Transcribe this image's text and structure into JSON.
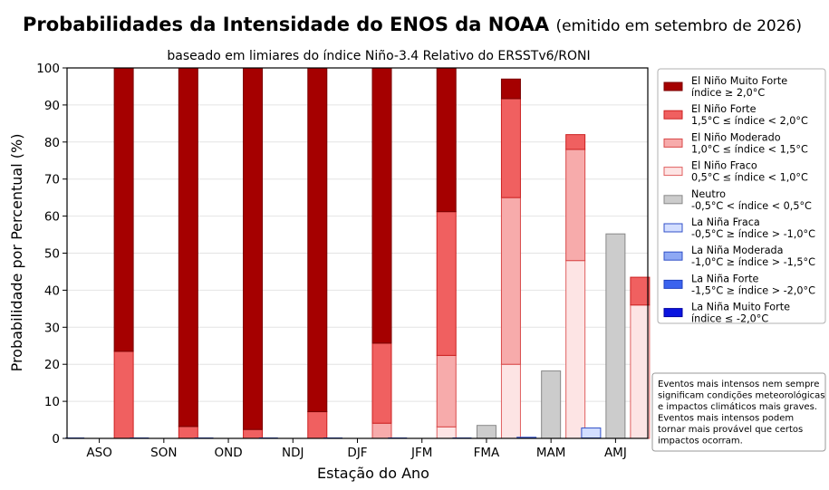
{
  "chart_data": {
    "type": "bar",
    "title": "Probabilidades da Intensidade do ENOS da NOAA",
    "title_suffix": "(emitido em setembro de 2026)",
    "subtitle": "baseado em limiares do índice Niño-3.4 Relativo do ERSSTv6/RONI",
    "xlabel": "Estação do Ano",
    "ylabel": "Probabilidade por Percentual (%)",
    "ylim": [
      0,
      100
    ],
    "yticks": [
      0,
      10,
      20,
      30,
      40,
      50,
      60,
      70,
      80,
      90,
      100
    ],
    "grid": true,
    "legend_position": "right",
    "categories": [
      "ASO",
      "SON",
      "OND",
      "NDJ",
      "DJF",
      "JFM",
      "FMA",
      "MAM",
      "AMJ"
    ],
    "groups": [
      {
        "name": "La Niña",
        "stack_order": [
          "La Niña Muito Forte",
          "La Niña Forte",
          "La Niña Moderada",
          "La Niña Fraca"
        ]
      },
      {
        "name": "Neutro",
        "stack_order": [
          "Neutro"
        ]
      },
      {
        "name": "El Niño",
        "stack_order": [
          "El Niño Fraco",
          "El Niño Moderado",
          "El Niño Forte",
          "El Niño Muito Forte"
        ]
      }
    ],
    "series": [
      {
        "name": "El Niño Muito Forte",
        "label": [
          "El Niño Muito Forte",
          "índice ≥ 2,0°C"
        ],
        "color": "#a50000",
        "border": "#7a0000",
        "values": [
          76.5,
          96.8,
          97.6,
          92.8,
          74.3,
          38.8,
          5.3,
          0,
          0
        ]
      },
      {
        "name": "El Niño Forte",
        "label": [
          "El Niño Forte",
          "1,5°C ≤ índice < 2,0°C"
        ],
        "color": "#f06060",
        "border": "#cc2222",
        "values": [
          23.5,
          3.2,
          2.4,
          7.2,
          21.6,
          38.8,
          26.7,
          4.0,
          7.5
        ]
      },
      {
        "name": "El Niño Moderado",
        "label": [
          "El Niño Moderado",
          "1,0°C ≤ índice < 1,5°C"
        ],
        "color": "#f7abab",
        "border": "#d84848",
        "values": [
          0,
          0,
          0,
          0,
          4.1,
          19.3,
          45.0,
          30.0,
          0
        ]
      },
      {
        "name": "El Niño Fraco",
        "label": [
          "El Niño Fraco",
          "0,5°C ≤ índice < 1,0°C"
        ],
        "color": "#fde4e4",
        "border": "#e06060",
        "values": [
          0,
          0,
          0,
          0,
          0,
          3.1,
          20.0,
          48.0,
          36.0
        ]
      },
      {
        "name": "Neutro",
        "label": [
          "Neutro",
          "-0,5°C < índice < 0,5°C"
        ],
        "color": "#cccccc",
        "border": "#888888",
        "values": [
          0,
          0,
          0,
          0,
          0,
          0,
          3.5,
          18.2,
          55.2
        ]
      },
      {
        "name": "La Niña Fraca",
        "label": [
          "La Niña Fraca",
          "-0,5°C ≥ índice > -1,0°C"
        ],
        "color": "#d3deff",
        "border": "#3050c8",
        "values": [
          0,
          0,
          0,
          0,
          0,
          0,
          0,
          0.3,
          2.8
        ]
      },
      {
        "name": "La Niña Moderada",
        "label": [
          "La Niña Moderada",
          "-1,0°C ≥ índice > -1,5°C"
        ],
        "color": "#8ea8f4",
        "border": "#3050c8",
        "values": [
          0,
          0,
          0,
          0,
          0,
          0,
          0,
          0,
          0
        ]
      },
      {
        "name": "La Niña Forte",
        "label": [
          "La Niña Forte",
          "-1,5°C ≥ índice > -2,0°C"
        ],
        "color": "#3b63ee",
        "border": "#2040c0",
        "values": [
          0,
          0,
          0,
          0,
          0,
          0,
          0,
          0,
          0
        ]
      },
      {
        "name": "La Niña Muito Forte",
        "label": [
          "La Niña Muito Forte",
          "índice ≤ -2,0°C"
        ],
        "color": "#0a14e0",
        "border": "#0000a0",
        "values": [
          0,
          0,
          0,
          0,
          0,
          0,
          0,
          0,
          0
        ]
      }
    ],
    "annotation": [
      "Eventos mais intensos nem sempre",
      "significam condições meteorológicas",
      "e impactos climáticos mais graves.",
      "Eventos mais intensos podem",
      "tornar mais provável que certos",
      "impactos ocorram."
    ]
  }
}
